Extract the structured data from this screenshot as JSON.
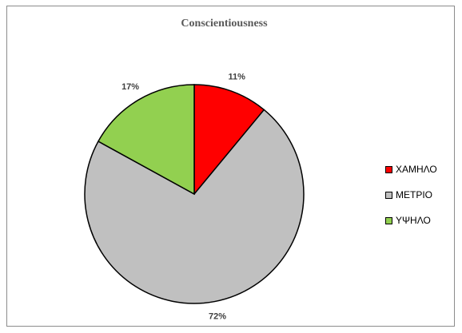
{
  "chart_data": {
    "type": "pie",
    "title": "Conscientiousness",
    "categories": [
      "ΧΑΜΗΛΟ",
      "ΜΕΤΡΙΟ",
      "ΥΨΗΛΟ"
    ],
    "values": [
      11,
      72,
      17
    ],
    "data_labels": [
      "11%",
      "72%",
      "17%"
    ],
    "colors": [
      "#ff0000",
      "#c0c0c0",
      "#92d050"
    ],
    "legend_position": "right",
    "start_angle": "12 o'clock, clockwise"
  }
}
